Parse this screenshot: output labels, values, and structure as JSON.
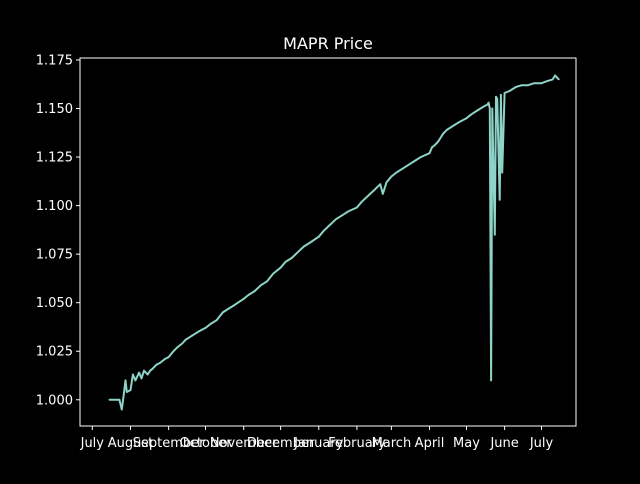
{
  "chart_data": {
    "type": "line",
    "title": "MAPR Price",
    "xlabel": "",
    "ylabel": "",
    "xlim": [
      "2022-06-21",
      "2023-07-29"
    ],
    "ylim": [
      0.9865,
      1.176
    ],
    "y_ticks": [
      1.0,
      1.025,
      1.05,
      1.075,
      1.1,
      1.125,
      1.15,
      1.175
    ],
    "y_tick_labels": [
      "1.000",
      "1.025",
      "1.050",
      "1.075",
      "1.100",
      "1.125",
      "1.150",
      "1.175"
    ],
    "x_ticks": [
      "2022-07-01",
      "2022-08-01",
      "2022-09-01",
      "2022-10-01",
      "2022-11-01",
      "2022-12-01",
      "2023-01-01",
      "2023-02-01",
      "2023-03-01",
      "2023-04-01",
      "2023-05-01",
      "2023-06-01",
      "2023-07-01"
    ],
    "x_tick_labels": [
      "July",
      "August",
      "September",
      "October",
      "November",
      "December",
      "January",
      "February",
      "March",
      "April",
      "May",
      "June",
      "July"
    ],
    "grid": false,
    "colors": {
      "background": "#000000",
      "line": "#8dd3c7",
      "axis": "#ffffff"
    },
    "series": [
      {
        "x": [
          "2022-07-15",
          "2022-07-22",
          "2022-07-23",
          "2022-07-25",
          "2022-07-26",
          "2022-07-28",
          "2022-07-29",
          "2022-08-01",
          "2022-08-03",
          "2022-08-05",
          "2022-08-08",
          "2022-08-10",
          "2022-08-12",
          "2022-08-15",
          "2022-08-17",
          "2022-08-19",
          "2022-08-22",
          "2022-08-25",
          "2022-08-29",
          "2022-09-01",
          "2022-09-05",
          "2022-09-08",
          "2022-09-12",
          "2022-09-15",
          "2022-09-20",
          "2022-09-25",
          "2022-10-01",
          "2022-10-05",
          "2022-10-10",
          "2022-10-15",
          "2022-10-20",
          "2022-10-25",
          "2022-11-01",
          "2022-11-05",
          "2022-11-10",
          "2022-11-15",
          "2022-11-20",
          "2022-11-25",
          "2022-12-01",
          "2022-12-05",
          "2022-12-10",
          "2022-12-15",
          "2022-12-20",
          "2022-12-25",
          "2023-01-01",
          "2023-01-05",
          "2023-01-10",
          "2023-01-15",
          "2023-01-20",
          "2023-01-25",
          "2023-02-01",
          "2023-02-05",
          "2023-02-10",
          "2023-02-15",
          "2023-02-20",
          "2023-02-22",
          "2023-02-25",
          "2023-03-01",
          "2023-03-05",
          "2023-03-10",
          "2023-03-15",
          "2023-03-20",
          "2023-03-25",
          "2023-04-01",
          "2023-04-03",
          "2023-04-05",
          "2023-04-08",
          "2023-04-12",
          "2023-04-15",
          "2023-04-20",
          "2023-04-25",
          "2023-05-01",
          "2023-05-05",
          "2023-05-10",
          "2023-05-15",
          "2023-05-18",
          "2023-05-19",
          "2023-05-20",
          "2023-05-21",
          "2023-05-22",
          "2023-05-24",
          "2023-05-25",
          "2023-05-26",
          "2023-05-28",
          "2023-05-29",
          "2023-05-30",
          "2023-06-01",
          "2023-06-05",
          "2023-06-10",
          "2023-06-15",
          "2023-06-20",
          "2023-06-25",
          "2023-07-01",
          "2023-07-05",
          "2023-07-10",
          "2023-07-12",
          "2023-07-15"
        ],
        "y": [
          1.0,
          1.0,
          1.0,
          0.995,
          1.0,
          1.01,
          1.004,
          1.005,
          1.013,
          1.01,
          1.014,
          1.011,
          1.015,
          1.013,
          1.015,
          1.016,
          1.018,
          1.019,
          1.021,
          1.022,
          1.025,
          1.027,
          1.029,
          1.031,
          1.033,
          1.035,
          1.037,
          1.039,
          1.041,
          1.045,
          1.047,
          1.049,
          1.052,
          1.054,
          1.056,
          1.059,
          1.061,
          1.065,
          1.068,
          1.071,
          1.073,
          1.076,
          1.079,
          1.081,
          1.084,
          1.087,
          1.09,
          1.093,
          1.095,
          1.097,
          1.099,
          1.102,
          1.105,
          1.108,
          1.111,
          1.106,
          1.112,
          1.115,
          1.117,
          1.119,
          1.121,
          1.123,
          1.125,
          1.127,
          1.13,
          1.131,
          1.133,
          1.137,
          1.139,
          1.141,
          1.143,
          1.145,
          1.147,
          1.149,
          1.151,
          1.152,
          1.153,
          1.15,
          1.01,
          1.15,
          1.085,
          1.156,
          1.155,
          1.103,
          1.157,
          1.117,
          1.158,
          1.159,
          1.161,
          1.162,
          1.162,
          1.163,
          1.163,
          1.164,
          1.165,
          1.167,
          1.165
        ]
      }
    ]
  }
}
